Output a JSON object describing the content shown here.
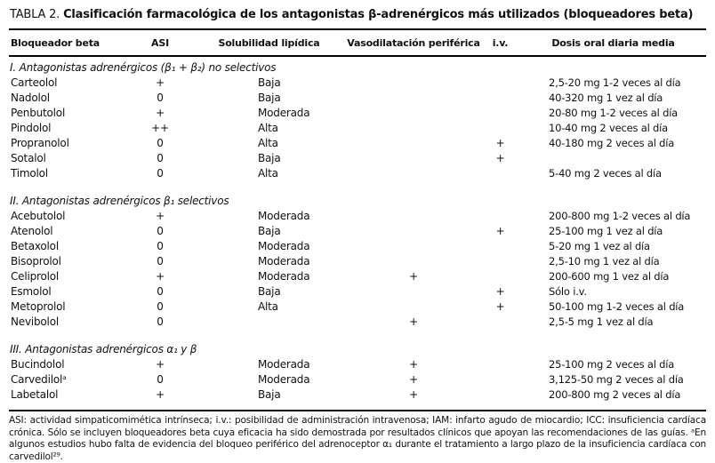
{
  "title": {
    "label": "TABLA 2.",
    "text": "Clasificación farmacológica de los antagonistas β-adrenérgicos más utilizados (bloqueadores beta)"
  },
  "table": {
    "columns": [
      "Bloqueador beta",
      "ASI",
      "Solubilidad lipídica",
      "Vasodilatación periférica",
      "i.v.",
      "Dosis oral diaria media"
    ],
    "sections": [
      {
        "header": "I. Antagonistas adrenérgicos (β₁ + β₂) no selectivos",
        "rows": [
          [
            "Carteolol",
            "+",
            "Baja",
            "",
            "",
            "2,5-20 mg 1-2 veces al día"
          ],
          [
            "Nadolol",
            "0",
            "Baja",
            "",
            "",
            "40-320 mg 1 vez al día"
          ],
          [
            "Penbutolol",
            "+",
            "Moderada",
            "",
            "",
            "20-80 mg 1-2 veces al día"
          ],
          [
            "Pindolol",
            "++",
            "Alta",
            "",
            "",
            "10-40 mg 2 veces al día"
          ],
          [
            "Propranolol",
            "0",
            "Alta",
            "",
            "+",
            "40-180 mg 2 veces al día"
          ],
          [
            "Sotalol",
            "0",
            "Baja",
            "",
            "+",
            ""
          ],
          [
            "Timolol",
            "0",
            "Alta",
            "",
            "",
            "5-40 mg 2 veces al día"
          ]
        ]
      },
      {
        "header": "II. Antagonistas adrenérgicos β₁ selectivos",
        "rows": [
          [
            "Acebutolol",
            "+",
            "Moderada",
            "",
            "",
            "200-800 mg 1-2 veces al día"
          ],
          [
            "Atenolol",
            "0",
            "Baja",
            "",
            "+",
            "25-100 mg 1 vez al día"
          ],
          [
            "Betaxolol",
            "0",
            "Moderada",
            "",
            "",
            "5-20 mg 1 vez al día"
          ],
          [
            "Bisoprolol",
            "0",
            "Moderada",
            "",
            "",
            "2,5-10 mg 1 vez al día"
          ],
          [
            "Celiprolol",
            "+",
            "Moderada",
            "+",
            "",
            "200-600 mg 1 vez al día"
          ],
          [
            "Esmolol",
            "0",
            "Baja",
            "",
            "+",
            "Sólo i.v."
          ],
          [
            "Metoprolol",
            "0",
            "Alta",
            "",
            "+",
            "50-100 mg 1-2 veces al día"
          ],
          [
            "Nevibolol",
            "0",
            "",
            "+",
            "",
            "2,5-5 mg 1 vez al día"
          ]
        ]
      },
      {
        "header": "III. Antagonistas adrenérgicos α₁ y β",
        "rows": [
          [
            "Bucindolol",
            "+",
            "Moderada",
            "+",
            "",
            "25-100 mg 2 veces al día"
          ],
          [
            "Carvedilolᵃ",
            "0",
            "Moderada",
            "+",
            "",
            "3,125-50 mg 2 veces al día"
          ],
          [
            "Labetalol",
            "+",
            "Baja",
            "+",
            "",
            "200-800 mg 2 veces al día"
          ]
        ]
      }
    ]
  },
  "footnote": "ASI: actividad simpaticomimética intrínseca; i.v.: posibilidad de administración intravenosa; IAM: infarto agudo de miocardio; ICC: insuficiencia cardíaca crónica. Sólo se incluyen bloqueadores beta cuya eficacia ha sido demostrada por resultados clínicos que apoyan las recomendaciones de las guías. ᵃEn algunos estudios hubo falta de evidencia del bloqueo periférico del adrenoceptor α₁ durante el tratamiento a largo plazo de la insuficiencia cardíaca con carvedilol²⁹.",
  "colors": {
    "background": "#ffffff",
    "text": "#111111",
    "rule": "#000000"
  }
}
